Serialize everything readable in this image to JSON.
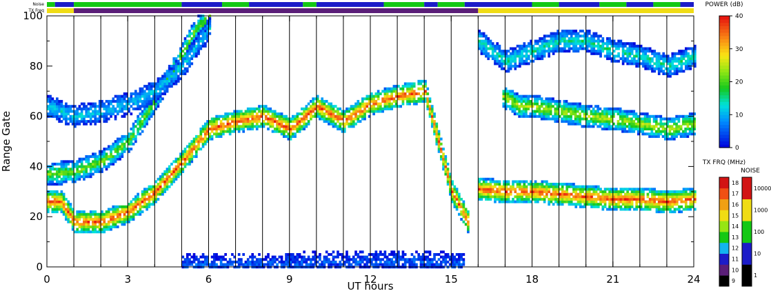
{
  "header": {
    "noise_strip_label": "Noise",
    "freq_strip_label": "TX Freq"
  },
  "chart_data": {
    "type": "heatmap",
    "xlabel": "UT hours",
    "ylabel": "Range Gate",
    "xlim": [
      0,
      24
    ],
    "ylim": [
      0,
      100
    ],
    "x_ticks": [
      0,
      3,
      6,
      9,
      12,
      15,
      18,
      21,
      24
    ],
    "y_ticks": [
      0,
      20,
      40,
      60,
      80,
      100
    ],
    "scan_boundaries_ut": [
      1,
      2,
      3,
      4,
      5,
      6,
      7,
      8,
      9,
      10,
      11,
      12,
      13,
      14,
      15,
      16,
      17,
      18,
      19,
      20,
      21,
      22,
      23
    ],
    "scatter_bands": [
      {
        "name": "low_band",
        "peak_power_db": 40,
        "points": [
          [
            0,
            26
          ],
          [
            0.5,
            26
          ],
          [
            1,
            18
          ],
          [
            2,
            18
          ],
          [
            3,
            22
          ],
          [
            4,
            30
          ],
          [
            5,
            42
          ],
          [
            6,
            55
          ],
          [
            7,
            58
          ],
          [
            8,
            60
          ],
          [
            9,
            55
          ],
          [
            10,
            64
          ],
          [
            11,
            58
          ],
          [
            12,
            65
          ],
          [
            13,
            68
          ],
          [
            14,
            70
          ],
          [
            15,
            30
          ],
          [
            15.6,
            18
          ]
        ]
      },
      {
        "name": "early_upper_band",
        "peak_power_db": 25,
        "points": [
          [
            0,
            37
          ],
          [
            1,
            38
          ],
          [
            2,
            42
          ],
          [
            3,
            50
          ],
          [
            3.6,
            60
          ],
          [
            4.3,
            72
          ],
          [
            5,
            85
          ],
          [
            5.5,
            95
          ],
          [
            6,
            100
          ]
        ]
      },
      {
        "name": "early_top_band",
        "peak_power_db": 15,
        "points": [
          [
            0,
            64
          ],
          [
            1,
            60
          ],
          [
            2,
            62
          ],
          [
            3,
            65
          ],
          [
            4,
            70
          ],
          [
            5,
            80
          ],
          [
            6,
            95
          ]
        ]
      },
      {
        "name": "evening_strong_band",
        "peak_power_db": 40,
        "points": [
          [
            16,
            31
          ],
          [
            17,
            30
          ],
          [
            18,
            30
          ],
          [
            19,
            29
          ],
          [
            20,
            28
          ],
          [
            21,
            27
          ],
          [
            22,
            27
          ],
          [
            23,
            26
          ],
          [
            24,
            27
          ]
        ]
      },
      {
        "name": "evening_mid_band",
        "peak_power_db": 28,
        "points": [
          [
            16.9,
            68
          ],
          [
            17.5,
            64
          ],
          [
            18,
            64
          ],
          [
            19,
            62
          ],
          [
            20,
            60
          ],
          [
            21,
            59
          ],
          [
            22,
            57
          ],
          [
            23,
            55
          ],
          [
            24,
            57
          ]
        ]
      },
      {
        "name": "evening_high_band",
        "peak_power_db": 18,
        "points": [
          [
            16,
            90
          ],
          [
            17,
            82
          ],
          [
            18,
            86
          ],
          [
            19,
            90
          ],
          [
            20,
            90
          ],
          [
            21,
            86
          ],
          [
            22,
            84
          ],
          [
            23,
            80
          ],
          [
            24,
            84
          ]
        ]
      },
      {
        "name": "ground_band",
        "peak_power_db": 8,
        "points": [
          [
            5,
            1
          ],
          [
            8,
            1
          ],
          [
            11,
            2
          ],
          [
            14,
            2
          ],
          [
            15.5,
            1
          ]
        ]
      }
    ],
    "power_colorbar": {
      "title": "POWER (dB)",
      "min": 0,
      "max": 40,
      "ticks": [
        0,
        10,
        20,
        30,
        40
      ]
    },
    "freq_colorbar": {
      "title": "TX FRQ (MHz)",
      "levels": [
        9,
        10,
        11,
        12,
        13,
        14,
        15,
        16,
        17,
        18
      ],
      "colors": [
        "#000000",
        "#5a1e78",
        "#1c1cc8",
        "#14b4f0",
        "#14c814",
        "#96e614",
        "#f0dc14",
        "#f0a014",
        "#f05014",
        "#d21414"
      ]
    },
    "noise_colorbar": {
      "title": "NOISE",
      "ticks": [
        "1",
        "10",
        "100",
        "1000",
        "10000"
      ],
      "colors": [
        "#000000",
        "#1c1cc8",
        "#14c814",
        "#f0dc14",
        "#d21414"
      ]
    },
    "status_strips": {
      "noise": {
        "palette": [
          "#14c814",
          "#1c1cc8"
        ],
        "segments": [
          [
            0,
            0.3,
            0
          ],
          [
            0.3,
            1,
            1
          ],
          [
            1,
            5,
            0
          ],
          [
            5,
            6.5,
            1
          ],
          [
            6.5,
            7.5,
            0
          ],
          [
            7.5,
            9.5,
            1
          ],
          [
            9.5,
            10,
            0
          ],
          [
            10,
            12.5,
            1
          ],
          [
            12.5,
            14,
            0
          ],
          [
            14,
            14.5,
            1
          ],
          [
            14.5,
            15.5,
            0
          ],
          [
            15.5,
            18,
            1
          ],
          [
            18,
            19,
            0
          ],
          [
            19,
            20.5,
            1
          ],
          [
            20.5,
            21.5,
            0
          ],
          [
            21.5,
            22.5,
            1
          ],
          [
            22.5,
            23.5,
            0
          ],
          [
            23.5,
            24,
            1
          ]
        ]
      },
      "freq": {
        "palette": [
          "#f0dc14",
          "#5a1e78"
        ],
        "segments": [
          [
            0,
            1,
            0
          ],
          [
            1,
            16,
            1
          ],
          [
            16,
            24,
            0
          ]
        ]
      }
    }
  }
}
